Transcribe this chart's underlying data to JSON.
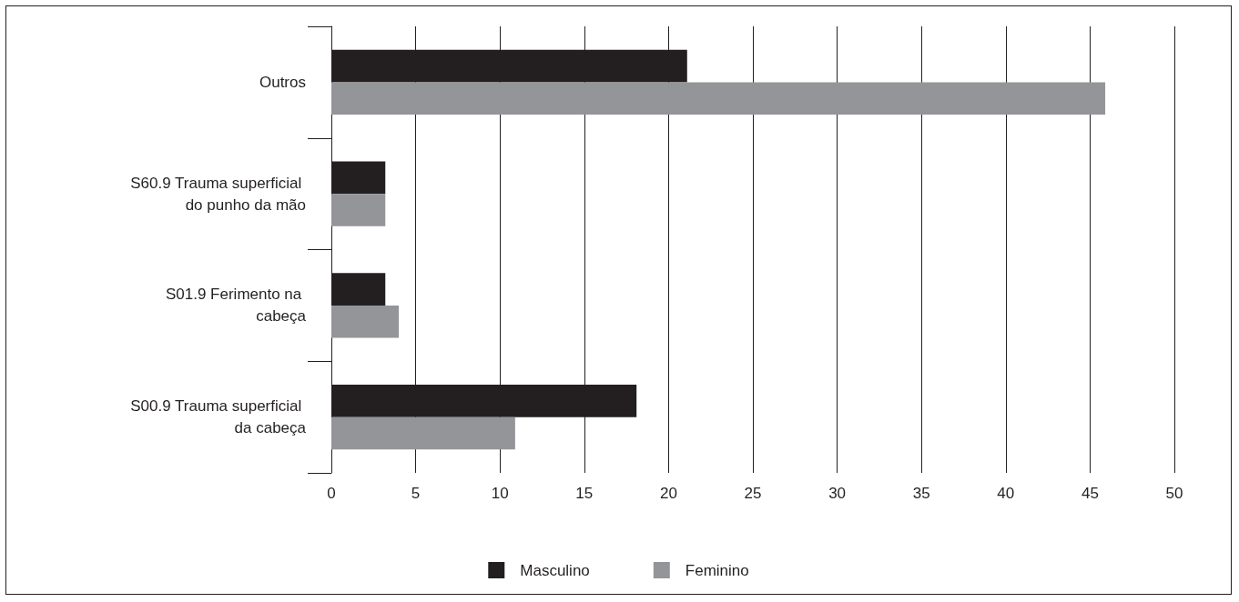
{
  "chart_data": {
    "type": "bar",
    "orientation": "horizontal",
    "categories": [
      "Outros",
      "S60.9 Trauma superficial do punho da mão",
      "S01.9 Ferimento na cabeça",
      "S00.9 Trauma superficial da cabeça"
    ],
    "series": [
      {
        "name": "Masculino",
        "color": "#231f20",
        "values": [
          21.1,
          3.2,
          3.2,
          18.1
        ]
      },
      {
        "name": "Feminino",
        "color": "#939598",
        "values": [
          45.9,
          3.2,
          4.0,
          10.9
        ]
      }
    ],
    "xlim": [
      0,
      50
    ],
    "xticks": [
      0,
      5,
      10,
      15,
      20,
      25,
      30,
      35,
      40,
      45,
      50
    ],
    "grid": "x",
    "legend": "bottom"
  }
}
